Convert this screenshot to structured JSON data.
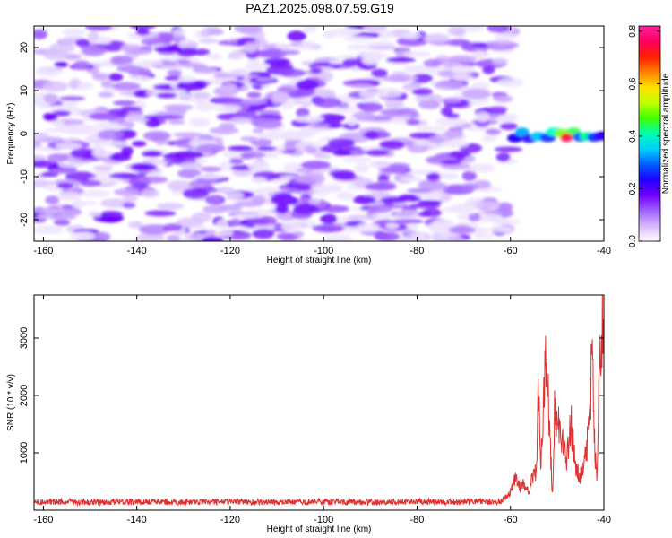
{
  "title": "PAZ1.2025.098.07.59.G19",
  "chart_data": [
    {
      "type": "heatmap",
      "xlabel": "Height of straight line (km)",
      "ylabel": "Frequency (Hz)",
      "xlim": [
        -162,
        -40
      ],
      "ylim": [
        -25,
        25
      ],
      "x_ticks": [
        -160,
        -140,
        -120,
        -100,
        -80,
        -60,
        -40
      ],
      "y_ticks": [
        -20,
        -10,
        0,
        10,
        20
      ],
      "colorbar": {
        "label": "Normalized spectral amplitude",
        "range": [
          0,
          0.82
        ],
        "ticks": [
          0.0,
          0.2,
          0.4,
          0.6,
          0.8
        ],
        "colors": [
          "#ffffff",
          "#d8b8ff",
          "#a060ff",
          "#7000ff",
          "#2000ff",
          "#0060ff",
          "#00d0ff",
          "#00ffb0",
          "#40ff00",
          "#c0ff00",
          "#ffe000",
          "#ff8000",
          "#ff2000",
          "#ff0060",
          "#ff20a0"
        ]
      },
      "background_max_x": -60,
      "notes_features": [
        {
          "x_range": [
            -60,
            -40
          ],
          "center_freq": -0.5,
          "peak_x": -48,
          "peak_value": 0.82
        }
      ]
    },
    {
      "type": "line",
      "xlabel": "Height of straight line (km)",
      "ylabel": "SNR (10 * v/v)",
      "xlim": [
        -162,
        -40
      ],
      "ylim": [
        0,
        3750
      ],
      "x_ticks": [
        -160,
        -140,
        -120,
        -100,
        -80,
        -60,
        -40
      ],
      "y_ticks": [
        1000,
        2000,
        3000
      ],
      "color": "#e03030",
      "series": [
        {
          "x": [
            -162,
            -150,
            -140,
            -130,
            -120,
            -110,
            -100,
            -90,
            -80,
            -70,
            -62,
            -60,
            -59,
            -58,
            -57,
            -56,
            -55,
            -54.5,
            -54,
            -53.5,
            -53,
            -52.5,
            -52,
            -51,
            -50.5,
            -50,
            -49,
            -48,
            -47,
            -46,
            -45,
            -44,
            -43,
            -42.5,
            -42,
            -41.5,
            -41,
            -40.5,
            -40
          ],
          "y": [
            150,
            140,
            150,
            140,
            150,
            140,
            150,
            140,
            150,
            145,
            150,
            300,
            550,
            400,
            450,
            300,
            700,
            600,
            2100,
            900,
            1700,
            3000,
            2200,
            200,
            1900,
            1600,
            1200,
            900,
            1500,
            700,
            600,
            900,
            1500,
            3000,
            1200,
            400,
            2300,
            3000,
            3700
          ]
        }
      ]
    }
  ]
}
